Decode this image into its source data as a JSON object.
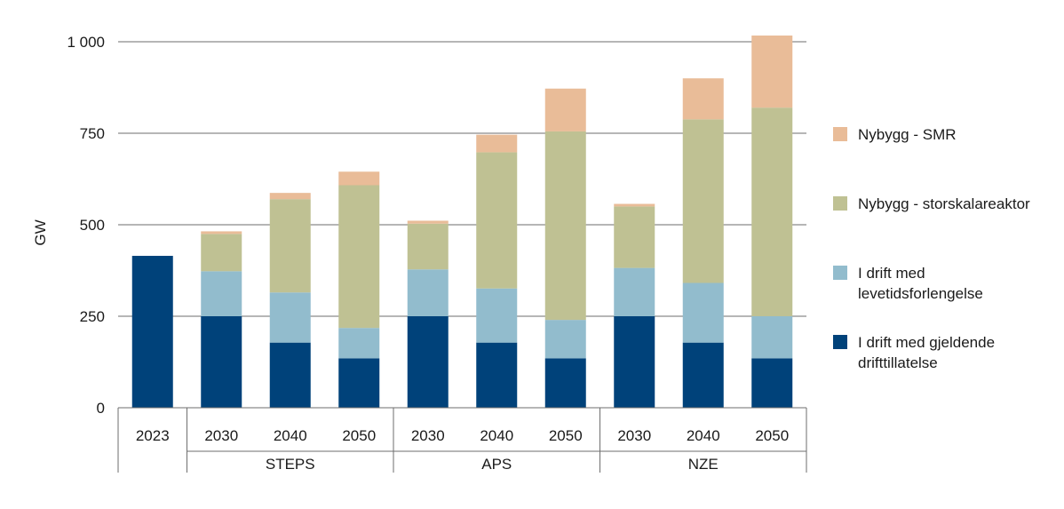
{
  "chart_data": {
    "type": "bar",
    "stacked": true,
    "ylabel": "GW",
    "ylim": [
      0,
      1000
    ],
    "yticks": [
      {
        "value": 0,
        "label": "0"
      },
      {
        "value": 250,
        "label": "250"
      },
      {
        "value": 500,
        "label": "500"
      },
      {
        "value": 750,
        "label": "750"
      },
      {
        "value": 1000,
        "label": "1 000"
      }
    ],
    "categories": [
      "2023",
      "2030",
      "2040",
      "2050",
      "2030",
      "2040",
      "2050",
      "2030",
      "2040",
      "2050"
    ],
    "groups": [
      {
        "label": "",
        "span": [
          0,
          0
        ]
      },
      {
        "label": "STEPS",
        "span": [
          1,
          3
        ]
      },
      {
        "label": "APS",
        "span": [
          4,
          6
        ]
      },
      {
        "label": "NZE",
        "span": [
          7,
          9
        ]
      }
    ],
    "series": [
      {
        "name": "I drift med gjeldende drifttillatelse",
        "color": "#00427a",
        "values": [
          415,
          250,
          178,
          135,
          250,
          178,
          135,
          250,
          178,
          135
        ]
      },
      {
        "name": "I drift med levetidsforlengelse",
        "color": "#92bccd",
        "values": [
          0,
          123,
          137,
          83,
          128,
          148,
          105,
          132,
          163,
          115
        ]
      },
      {
        "name": "Nybygg - storskalareaktor",
        "color": "#bfc193",
        "values": [
          0,
          102,
          255,
          390,
          125,
          372,
          515,
          168,
          447,
          570
        ]
      },
      {
        "name": "Nybygg - SMR",
        "color": "#e9bc98",
        "values": [
          0,
          7,
          17,
          37,
          8,
          48,
          117,
          7,
          112,
          197
        ]
      }
    ],
    "legend": {
      "position": "right",
      "items": [
        {
          "label": "Nybygg - SMR",
          "color": "#e9bc98"
        },
        {
          "label": "Nybygg - storskalareaktor",
          "color": "#bfc193"
        },
        {
          "label": "I drift med\nlevetidsforlengelse",
          "color": "#92bccd"
        },
        {
          "label": "I drift med gjeldende\ndrifttillatelse",
          "color": "#00427a"
        }
      ]
    }
  }
}
